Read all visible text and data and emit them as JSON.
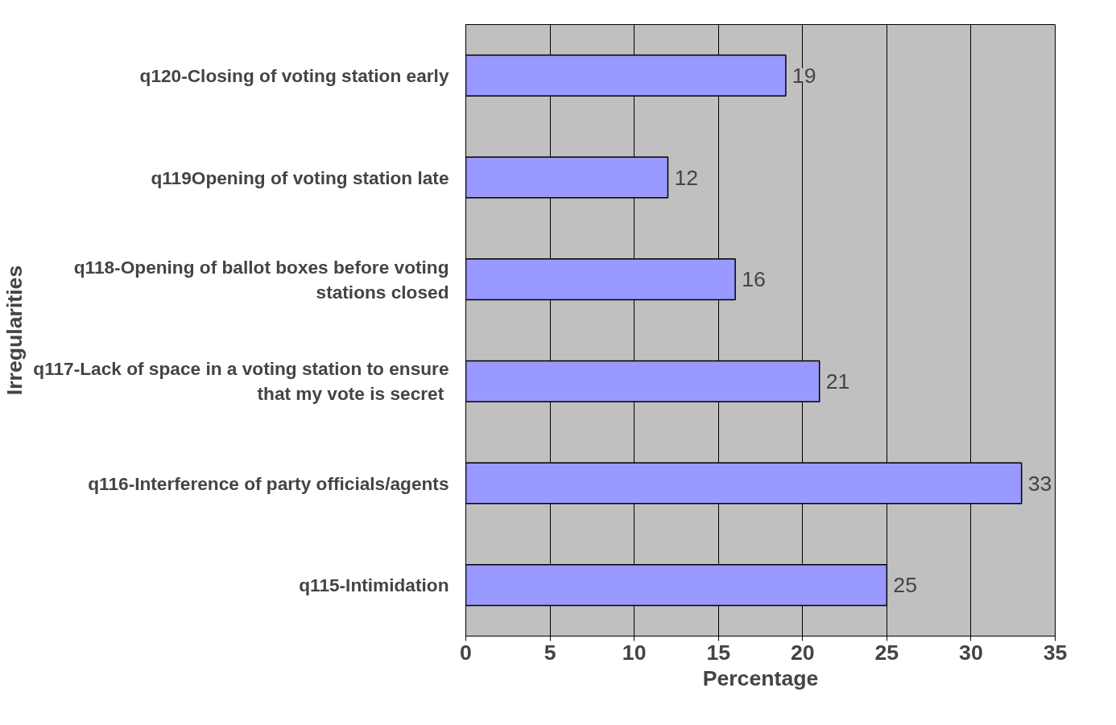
{
  "chart_data": {
    "type": "bar",
    "orientation": "horizontal",
    "xlabel": "Percentage",
    "ylabel": "Irregularities",
    "categories": [
      "q120-Closing of voting station early",
      "q119Opening of voting station late",
      "q118-Opening of ballot boxes before voting stations closed",
      "q117-Lack of space in a voting station to ensure that my vote  is secret",
      "q116-Interference of party officials/agents",
      "q115-Intimidation"
    ],
    "values": [
      19,
      12,
      16,
      21,
      33,
      25
    ],
    "color": "#9999ff",
    "data_labels": true,
    "xlim": [
      0,
      35
    ],
    "xticks": [
      0,
      5,
      10,
      15,
      20,
      25,
      30,
      35
    ],
    "grid": "x"
  }
}
